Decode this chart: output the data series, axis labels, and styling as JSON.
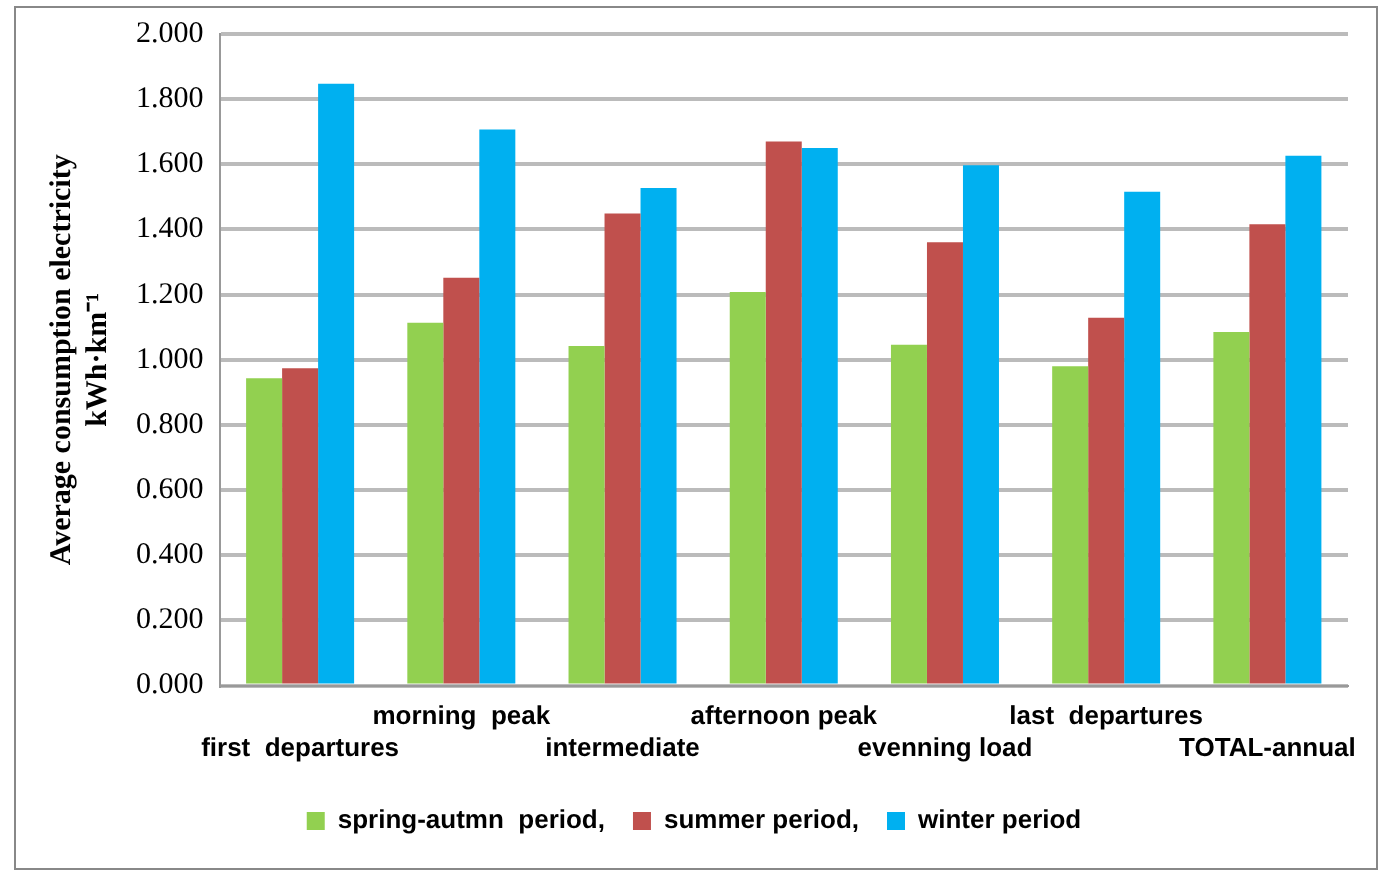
{
  "chart_data": {
    "type": "bar",
    "ylabel": "Average consumption electricity\nkWh·km⁻¹",
    "categories": [
      "first  departures",
      "morning  peak",
      "intermediate",
      "afternoon peak",
      "evenning load",
      "last  departures",
      "TOTAL-annual"
    ],
    "series": [
      {
        "name": "spring-autmn  period,",
        "color": "#92d050",
        "values": [
          0.943,
          1.114,
          1.042,
          1.208,
          1.046,
          0.98,
          1.085
        ]
      },
      {
        "name": "summer period,",
        "color": "#c0504d",
        "values": [
          0.974,
          1.252,
          1.449,
          1.67,
          1.361,
          1.129,
          1.416
        ]
      },
      {
        "name": "winter period",
        "color": "#00b0f0",
        "values": [
          1.847,
          1.707,
          1.527,
          1.65,
          1.597,
          1.516,
          1.626
        ]
      }
    ],
    "ylim": [
      0,
      2
    ],
    "yticks": [
      {
        "value": 0,
        "label": "0.000"
      },
      {
        "value": 0.2,
        "label": "0.200"
      },
      {
        "value": 0.4,
        "label": "0.400"
      },
      {
        "value": 0.6,
        "label": "0.600"
      },
      {
        "value": 0.8,
        "label": "0.800"
      },
      {
        "value": 1,
        "label": "1.000"
      },
      {
        "value": 1.2,
        "label": "1.200"
      },
      {
        "value": 1.4,
        "label": "1.400"
      },
      {
        "value": 1.6,
        "label": "1.600"
      },
      {
        "value": 1.8,
        "label": "1.800"
      },
      {
        "value": 2,
        "label": "2.000"
      }
    ],
    "grid": "y",
    "legend": "bottom"
  }
}
